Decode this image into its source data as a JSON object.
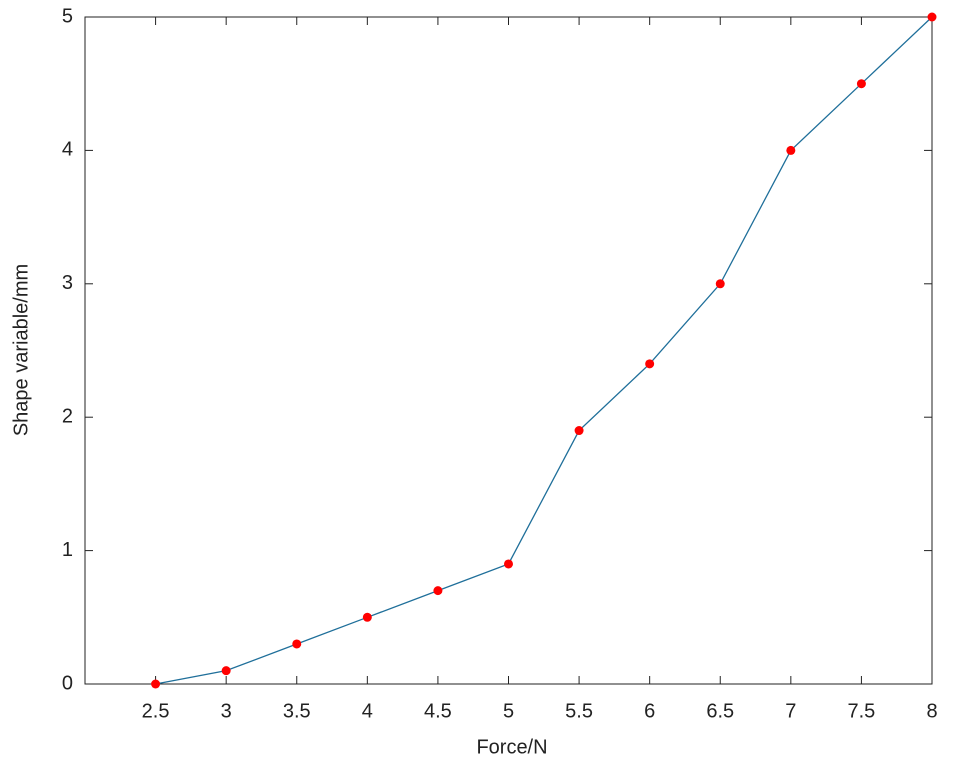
{
  "chart_data": {
    "type": "line",
    "x_label": "Force/N",
    "y_label": "Shape variable/mm",
    "x": [
      2.5,
      3,
      3.5,
      4,
      4.5,
      5,
      5.5,
      6,
      6.5,
      7,
      7.5,
      8
    ],
    "series": [
      {
        "values": [
          0,
          0.1,
          0.3,
          0.5,
          0.7,
          0.9,
          1.9,
          2.4,
          3,
          4,
          4.5,
          5
        ],
        "color": "#1f6f9a",
        "marker_color": "#ff0000"
      }
    ],
    "xlim": [
      2,
      8
    ],
    "xticks": [
      2.5,
      3,
      3.5,
      4,
      4.5,
      5,
      5.5,
      6,
      6.5,
      7,
      7.5,
      8
    ],
    "ylim": [
      0,
      5
    ],
    "yticks": [
      0,
      1,
      2,
      3,
      4,
      5
    ],
    "grid": false
  }
}
